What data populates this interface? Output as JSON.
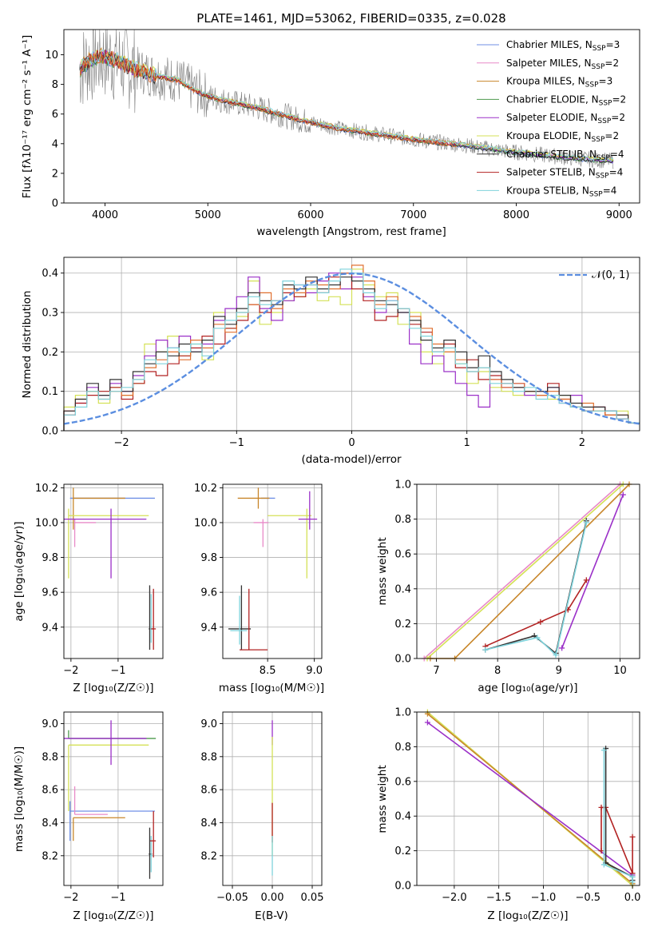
{
  "colors": {
    "chabrier_miles": "#6f8fe6",
    "salpeter_miles": "#e88ac8",
    "kroupa_miles": "#c8862a",
    "chabrier_elodie": "#4e9a4e",
    "salpeter_elodie": "#9b30c8",
    "kroupa_elodie": "#d4e157",
    "chabrier_stelib": "#333333",
    "salpeter_stelib": "#b22222",
    "kroupa_stelib": "#7fd3dc",
    "data_gray": "#808080",
    "normal_curve": "#5b8ee0",
    "orange_series": "#e07030"
  },
  "chart_data": [
    {
      "id": "spectrum",
      "type": "line",
      "title": "PLATE=1461, MJD=53062, FIBERID=0335, z=0.028",
      "xlabel": "wavelength [Angstrom, rest frame]",
      "ylabel": "Flux [fλ10⁻¹⁷ erg cm⁻² s⁻¹ A⁻¹]",
      "xlim": [
        3600,
        9200
      ],
      "ylim": [
        0,
        11.7
      ],
      "xticks": [
        "4000",
        "5000",
        "6000",
        "7000",
        "8000",
        "9000"
      ],
      "yticks": [
        "0",
        "2",
        "4",
        "6",
        "8",
        "10"
      ],
      "legend_position": "top-right",
      "legend": [
        {
          "name": "Chabrier MILES, N",
          "sub": "SSP",
          "tail": "=3"
        },
        {
          "name": "Salpeter MILES, N",
          "sub": "SSP",
          "tail": "=2"
        },
        {
          "name": "Kroupa MILES, N",
          "sub": "SSP",
          "tail": "=3"
        },
        {
          "name": "Chabrier ELODIE, N",
          "sub": "SSP",
          "tail": "=2"
        },
        {
          "name": "Salpeter ELODIE, N",
          "sub": "SSP",
          "tail": "=2"
        },
        {
          "name": "Kroupa ELODIE, N",
          "sub": "SSP",
          "tail": "=2"
        },
        {
          "name": "Chabrier STELIB, N",
          "sub": "SSP",
          "tail": "=4"
        },
        {
          "name": "Salpeter STELIB, N",
          "sub": "SSP",
          "tail": "=4"
        },
        {
          "name": "Kroupa STELIB, N",
          "sub": "SSP",
          "tail": "=4"
        }
      ],
      "model_continuum": {
        "x": [
          3750,
          3850,
          3950,
          4050,
          4150,
          4300,
          4500,
          4700,
          4900,
          5100,
          5300,
          5500,
          5700,
          5900,
          6100,
          6300,
          6500,
          6700,
          6900,
          7100,
          7300,
          7500,
          7700,
          7900,
          8100,
          8300,
          8500,
          8700,
          8900
        ],
        "y": [
          9.0,
          9.6,
          9.9,
          9.8,
          9.5,
          9.0,
          8.6,
          8.3,
          7.5,
          7.0,
          6.7,
          6.4,
          6.0,
          5.6,
          5.3,
          5.0,
          4.8,
          4.6,
          4.4,
          4.2,
          4.05,
          3.9,
          3.7,
          3.5,
          3.35,
          3.2,
          3.05,
          2.95,
          2.85
        ]
      }
    },
    {
      "id": "residuals",
      "type": "line",
      "xlabel": "(data-model)/error",
      "ylabel": "Normed distribution",
      "xlim": [
        -2.5,
        2.5
      ],
      "ylim": [
        0,
        0.44
      ],
      "xticks": [
        "−2",
        "−1",
        "0",
        "1",
        "2"
      ],
      "yticks": [
        "0.0",
        "0.1",
        "0.2",
        "0.3",
        "0.4"
      ],
      "legend": "𝒩(0, 1)",
      "bin_edges": [
        -2.5,
        -2.4,
        -2.3,
        -2.2,
        -2.1,
        -2.0,
        -1.9,
        -1.8,
        -1.7,
        -1.6,
        -1.5,
        -1.4,
        -1.3,
        -1.2,
        -1.1,
        -1.0,
        -0.9,
        -0.8,
        -0.7,
        -0.6,
        -0.5,
        -0.4,
        -0.3,
        -0.2,
        -0.1,
        0.0,
        0.1,
        0.2,
        0.3,
        0.4,
        0.5,
        0.6,
        0.7,
        0.8,
        0.9,
        1.0,
        1.1,
        1.2,
        1.3,
        1.4,
        1.5,
        1.6,
        1.7,
        1.8,
        1.9,
        2.0,
        2.1,
        2.2,
        2.3,
        2.4,
        2.5
      ],
      "series": [
        {
          "color_key": "kroupa_elodie",
          "values": [
            0.06,
            0.09,
            0.1,
            0.07,
            0.11,
            0.09,
            0.12,
            0.22,
            0.2,
            0.24,
            0.19,
            0.22,
            0.18,
            0.3,
            0.26,
            0.29,
            0.38,
            0.27,
            0.3,
            0.33,
            0.34,
            0.36,
            0.33,
            0.34,
            0.32,
            0.41,
            0.37,
            0.34,
            0.35,
            0.27,
            0.3,
            0.2,
            0.17,
            0.2,
            0.17,
            0.12,
            0.15,
            0.11,
            0.1,
            0.09,
            0.1,
            0.1,
            0.08,
            0.09,
            0.06,
            0.05,
            0.05,
            0.04,
            0.05,
            0.02
          ]
        },
        {
          "color_key": "salpeter_elodie",
          "values": [
            0.05,
            0.07,
            0.11,
            0.09,
            0.12,
            0.1,
            0.14,
            0.19,
            0.23,
            0.21,
            0.24,
            0.2,
            0.22,
            0.28,
            0.31,
            0.34,
            0.39,
            0.31,
            0.28,
            0.33,
            0.37,
            0.35,
            0.38,
            0.4,
            0.36,
            0.39,
            0.34,
            0.3,
            0.33,
            0.3,
            0.22,
            0.17,
            0.19,
            0.15,
            0.12,
            0.09,
            0.06,
            0.13,
            0.11,
            0.12,
            0.09,
            0.1,
            0.11,
            0.07,
            0.09,
            0.05,
            0.06,
            0.05,
            0.03,
            0.02
          ]
        },
        {
          "color_key": "salpeter_stelib",
          "values": [
            0.04,
            0.07,
            0.09,
            0.1,
            0.11,
            0.08,
            0.12,
            0.15,
            0.14,
            0.17,
            0.19,
            0.21,
            0.24,
            0.22,
            0.26,
            0.28,
            0.32,
            0.3,
            0.33,
            0.35,
            0.34,
            0.37,
            0.35,
            0.39,
            0.4,
            0.36,
            0.33,
            0.28,
            0.29,
            0.31,
            0.27,
            0.25,
            0.2,
            0.22,
            0.16,
            0.18,
            0.13,
            0.14,
            0.12,
            0.11,
            0.1,
            0.09,
            0.12,
            0.08,
            0.06,
            0.05,
            0.06,
            0.04,
            0.03,
            0.02
          ]
        },
        {
          "color_key": "orange_series",
          "values": [
            0.05,
            0.08,
            0.1,
            0.08,
            0.1,
            0.09,
            0.13,
            0.16,
            0.18,
            0.2,
            0.18,
            0.23,
            0.21,
            0.27,
            0.25,
            0.3,
            0.32,
            0.35,
            0.31,
            0.36,
            0.35,
            0.38,
            0.37,
            0.36,
            0.4,
            0.42,
            0.38,
            0.32,
            0.34,
            0.31,
            0.29,
            0.26,
            0.22,
            0.2,
            0.18,
            0.15,
            0.16,
            0.13,
            0.11,
            0.12,
            0.1,
            0.09,
            0.1,
            0.08,
            0.06,
            0.07,
            0.05,
            0.04,
            0.04,
            0.02
          ]
        },
        {
          "color_key": "chabrier_stelib",
          "values": [
            0.05,
            0.08,
            0.12,
            0.09,
            0.13,
            0.1,
            0.15,
            0.17,
            0.2,
            0.19,
            0.22,
            0.2,
            0.23,
            0.29,
            0.27,
            0.31,
            0.35,
            0.33,
            0.32,
            0.37,
            0.36,
            0.39,
            0.36,
            0.37,
            0.39,
            0.38,
            0.36,
            0.33,
            0.32,
            0.3,
            0.28,
            0.23,
            0.21,
            0.23,
            0.2,
            0.16,
            0.19,
            0.15,
            0.13,
            0.11,
            0.1,
            0.1,
            0.11,
            0.09,
            0.07,
            0.06,
            0.06,
            0.05,
            0.04,
            0.02
          ]
        },
        {
          "color_key": "kroupa_stelib",
          "values": [
            0.04,
            0.06,
            0.1,
            0.08,
            0.1,
            0.11,
            0.13,
            0.18,
            0.17,
            0.21,
            0.2,
            0.22,
            0.19,
            0.26,
            0.28,
            0.3,
            0.34,
            0.32,
            0.33,
            0.38,
            0.37,
            0.37,
            0.35,
            0.38,
            0.41,
            0.4,
            0.35,
            0.31,
            0.33,
            0.31,
            0.26,
            0.24,
            0.2,
            0.21,
            0.17,
            0.15,
            0.16,
            0.12,
            0.12,
            0.1,
            0.11,
            0.08,
            0.09,
            0.07,
            0.06,
            0.05,
            0.05,
            0.05,
            0.03,
            0.02
          ]
        }
      ],
      "normal_curve": {
        "mu": 0,
        "sigma": 1
      }
    },
    {
      "id": "age_vs_z",
      "type": "scatter",
      "xlabel": "Z [log₁₀(Z/Z☉)]",
      "ylabel": "age  [log₁₀(age/yr)]",
      "xlim": [
        -2.15,
        -0.05
      ],
      "ylim": [
        9.22,
        10.22
      ],
      "xticks": [
        "−2",
        "−1"
      ],
      "yticks": [
        "9.4",
        "9.6",
        "9.8",
        "10.0",
        "10.2"
      ]
    },
    {
      "id": "age_vs_mass",
      "type": "scatter",
      "xlim": [
        8.02,
        9.08
      ],
      "ylim": [
        9.22,
        10.22
      ],
      "xlabel": "mass [log₁₀(M/M☉)]",
      "xticks": [
        "8.5",
        "9.0"
      ],
      "yticks": [
        "9.4",
        "9.6",
        "9.8",
        "10.0",
        "10.2"
      ]
    },
    {
      "id": "weight_vs_age",
      "type": "line",
      "xlabel": "age  [log₁₀(age/yr)]",
      "ylabel": "mass weight",
      "xlim": [
        6.68,
        10.32
      ],
      "ylim": [
        0,
        1
      ],
      "xticks": [
        "7",
        "8",
        "9",
        "10"
      ],
      "yticks": [
        "0.0",
        "0.2",
        "0.4",
        "0.6",
        "0.8",
        "1.0"
      ],
      "series": [
        {
          "color_key": "salpeter_miles",
          "x": [
            6.8,
            10.0
          ],
          "y": [
            0.0,
            1.0
          ]
        },
        {
          "color_key": "kroupa_elodie",
          "x": [
            6.85,
            10.05
          ],
          "y": [
            0.0,
            1.0
          ]
        },
        {
          "color_key": "kroupa_miles",
          "x": [
            6.9,
            7.3,
            10.15
          ],
          "y": [
            0.0,
            0.0,
            1.0
          ]
        },
        {
          "color_key": "salpeter_elodie",
          "x": [
            9.05,
            10.05
          ],
          "y": [
            0.06,
            0.94
          ]
        },
        {
          "color_key": "salpeter_stelib",
          "x": [
            7.8,
            8.7,
            9.15,
            9.45
          ],
          "y": [
            0.07,
            0.21,
            0.28,
            0.45
          ]
        },
        {
          "color_key": "chabrier_stelib",
          "x": [
            7.8,
            8.6,
            8.95,
            9.45
          ],
          "y": [
            0.05,
            0.13,
            0.03,
            0.79
          ]
        },
        {
          "color_key": "kroupa_stelib",
          "x": [
            7.8,
            8.65,
            8.95,
            9.45
          ],
          "y": [
            0.05,
            0.12,
            0.02,
            0.78
          ]
        }
      ]
    },
    {
      "id": "mass_vs_z",
      "type": "scatter",
      "xlabel": "Z [log₁₀(Z/Z☉)]",
      "ylabel": "mass [log₁₀(M/M☉)]",
      "xlim": [
        -2.15,
        -0.05
      ],
      "ylim": [
        8.02,
        9.07
      ],
      "xticks": [
        "−2",
        "−1"
      ],
      "yticks": [
        "8.2",
        "8.4",
        "8.6",
        "8.8",
        "9.0"
      ]
    },
    {
      "id": "mass_vs_ebv",
      "type": "scatter",
      "xlabel": "E(B-V)",
      "xlim": [
        -0.062,
        0.062
      ],
      "ylim": [
        8.02,
        9.07
      ],
      "xticks": [
        "−0.05",
        "0.00",
        "0.05"
      ],
      "yticks": [
        "8.2",
        "8.4",
        "8.6",
        "8.8",
        "9.0"
      ]
    },
    {
      "id": "weight_vs_z",
      "type": "line",
      "xlabel": "Z [log₁₀(Z/Z☉)]",
      "ylabel": "mass weight",
      "xlim": [
        -2.42,
        0.08
      ],
      "ylim": [
        0,
        1
      ],
      "xticks": [
        "−2.0",
        "−1.5",
        "−1.0",
        "−0.5",
        "0.0"
      ],
      "yticks": [
        "0.0",
        "0.2",
        "0.4",
        "0.6",
        "0.8",
        "1.0"
      ],
      "series": [
        {
          "color_key": "kroupa_elodie",
          "x": [
            -2.3,
            0.0
          ],
          "y": [
            1.0,
            0.0
          ]
        },
        {
          "color_key": "kroupa_miles",
          "x": [
            -2.3,
            0.0
          ],
          "y": [
            0.99,
            0.01
          ]
        },
        {
          "color_key": "salpeter_elodie",
          "x": [
            -2.3,
            0.0
          ],
          "y": [
            0.94,
            0.06
          ]
        },
        {
          "color_key": "salpeter_stelib",
          "x": [
            -0.35,
            -0.35,
            -0.3,
            0.0,
            0.0
          ],
          "y": [
            0.2,
            0.45,
            0.45,
            0.07,
            0.28
          ]
        },
        {
          "color_key": "chabrier_stelib",
          "x": [
            -0.3,
            -0.3,
            0.0,
            0.0
          ],
          "y": [
            0.79,
            0.13,
            0.05,
            0.03
          ]
        },
        {
          "color_key": "kroupa_stelib",
          "x": [
            -0.32,
            -0.32,
            0.0,
            0.0
          ],
          "y": [
            0.78,
            0.12,
            0.05,
            0.02
          ]
        }
      ]
    }
  ]
}
